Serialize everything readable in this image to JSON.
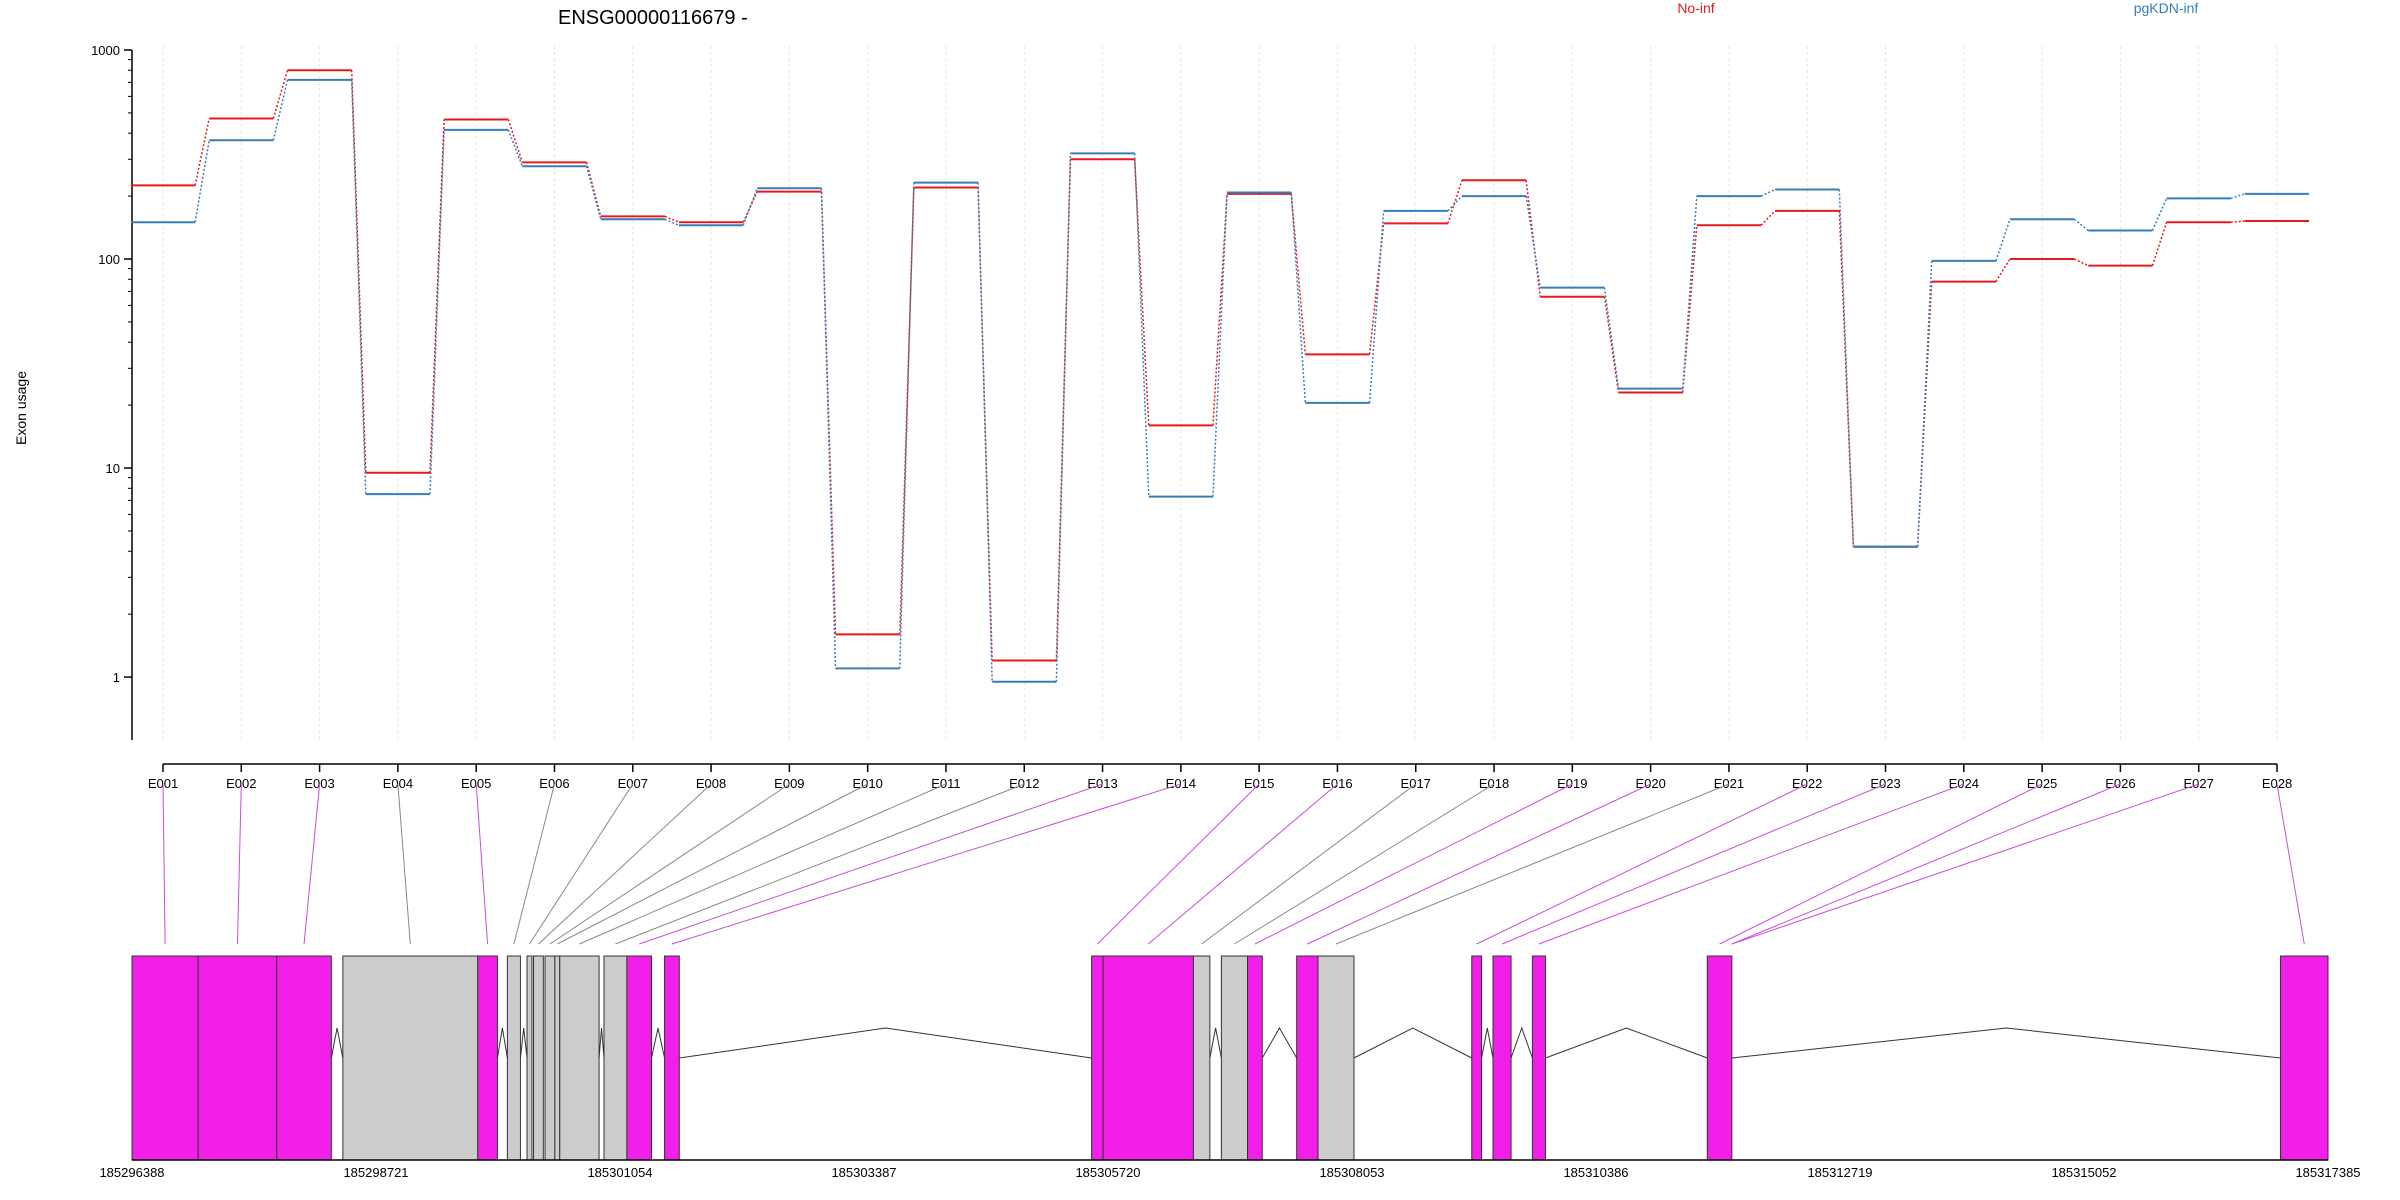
{
  "chart_data": {
    "type": "line",
    "title": "ENSG00000116679 -",
    "ylabel": "Exon usage",
    "xlabel": "",
    "y_scale": "log",
    "ylim": [
      0.5,
      1000
    ],
    "y_ticks": [
      1,
      10,
      100,
      1000
    ],
    "y_tick_labels": [
      "1",
      "10",
      "100",
      "1000"
    ],
    "grid": "vertical",
    "legend_placement": "top-right",
    "categories": [
      "E001",
      "E002",
      "E003",
      "E004",
      "E005",
      "E006",
      "E007",
      "E008",
      "E009",
      "E010",
      "E011",
      "E012",
      "E013",
      "E014",
      "E015",
      "E016",
      "E017",
      "E018",
      "E019",
      "E020",
      "E021",
      "E022",
      "E023",
      "E024",
      "E025",
      "E026",
      "E027",
      "E028"
    ],
    "series": [
      {
        "name": "No-inf",
        "color": "#e41a1c",
        "values": [
          225,
          470,
          800,
          9.5,
          465,
          290,
          160,
          150,
          210,
          1.6,
          220,
          1.2,
          300,
          16,
          205,
          35,
          148,
          238,
          66,
          23,
          145,
          170,
          4.2,
          78,
          100,
          93,
          150,
          152
        ]
      },
      {
        "name": "pgKDN-inf",
        "color": "#377eb8",
        "values": [
          150,
          370,
          720,
          7.5,
          415,
          278,
          155,
          145,
          218,
          1.1,
          232,
          0.95,
          320,
          7.3,
          208,
          20.5,
          170,
          200,
          73,
          24,
          200,
          215,
          4.2,
          98,
          155,
          137,
          195,
          205
        ]
      }
    ],
    "gene_model": {
      "coordinate_ticks": [
        "185296388",
        "185298721",
        "185301054",
        "185303387",
        "185305720",
        "185308053",
        "185310386",
        "185312719",
        "185315052",
        "185317385"
      ],
      "exon_color": "#f21fe8",
      "non_sig_color": "#cccccc",
      "exons": [
        {
          "id": "E001",
          "start": 185296388,
          "end": 185297021,
          "significant": true
        },
        {
          "id": "E002",
          "start": 185297021,
          "end": 185297772,
          "significant": true
        },
        {
          "id": "E003",
          "start": 185297772,
          "end": 185298294,
          "significant": true
        },
        {
          "id": "E004",
          "start": 185298404,
          "end": 185299694,
          "significant": false
        },
        {
          "id": "E005",
          "start": 185299694,
          "end": 185299882,
          "significant": true
        },
        {
          "id": "E006",
          "start": 185299977,
          "end": 185300102,
          "significant": false
        },
        {
          "id": "E007",
          "start": 185300165,
          "end": 185300212,
          "significant": false
        },
        {
          "id": "E008",
          "start": 185300227,
          "end": 185300321,
          "significant": false
        },
        {
          "id": "E009",
          "start": 185300337,
          "end": 185300431,
          "significant": false
        },
        {
          "id": "E010",
          "start": 185300431,
          "end": 185300478,
          "significant": false
        },
        {
          "id": "E011",
          "start": 185300478,
          "end": 185300854,
          "significant": false
        },
        {
          "id": "E012",
          "start": 185300901,
          "end": 185301120,
          "significant": false
        },
        {
          "id": "E013",
          "start": 185301120,
          "end": 185301355,
          "significant": true
        },
        {
          "id": "E014",
          "start": 185301480,
          "end": 185301621,
          "significant": true
        },
        {
          "id": "E015",
          "start": 185305563,
          "end": 185305673,
          "significant": true
        },
        {
          "id": "E016",
          "start": 185305673,
          "end": 185306537,
          "significant": true
        },
        {
          "id": "E017",
          "start": 185306537,
          "end": 185306694,
          "significant": false
        },
        {
          "id": "E018",
          "start": 185306804,
          "end": 185307054,
          "significant": false
        },
        {
          "id": "E019",
          "start": 185307054,
          "end": 185307195,
          "significant": true
        },
        {
          "id": "E020",
          "start": 185307524,
          "end": 185307728,
          "significant": true
        },
        {
          "id": "E021",
          "start": 185307728,
          "end": 185308072,
          "significant": false
        },
        {
          "id": "E022",
          "start": 185309198,
          "end": 185309292,
          "significant": true
        },
        {
          "id": "E023",
          "start": 185309401,
          "end": 185309574,
          "significant": true
        },
        {
          "id": "E024",
          "start": 185309778,
          "end": 185309903,
          "significant": true
        },
        {
          "id": "E025",
          "start": 185311450,
          "end": 185311685,
          "significant": true
        },
        {
          "id": "E026",
          "start": 185311685,
          "end": 185311685,
          "significant": true
        },
        {
          "id": "E027",
          "start": 185311685,
          "end": 185311685,
          "significant": true
        },
        {
          "id": "E028",
          "start": 185316931,
          "end": 185317385,
          "significant": true
        }
      ],
      "exon_mapped": [
        "E001",
        "E002",
        "E003",
        "E004",
        "E005",
        "E006",
        "E007",
        "E008",
        "E009",
        "E010",
        "E011",
        "E012",
        "E013",
        "E014",
        "E015",
        "E016",
        "E017",
        "E018",
        "E019",
        "E020",
        "E021",
        "E022",
        "E023",
        "E024",
        "E025",
        "E026",
        "E027",
        "E028"
      ],
      "link_colors": [
        "magenta",
        "magenta",
        "magenta",
        "gray",
        "magenta",
        "gray",
        "gray",
        "gray",
        "gray",
        "gray",
        "gray",
        "gray",
        "magenta",
        "magenta",
        "magenta",
        "magenta",
        "gray",
        "gray",
        "magenta",
        "magenta",
        "gray",
        "magenta",
        "magenta",
        "magenta",
        "magenta",
        "magenta",
        "magenta",
        "magenta"
      ]
    }
  }
}
